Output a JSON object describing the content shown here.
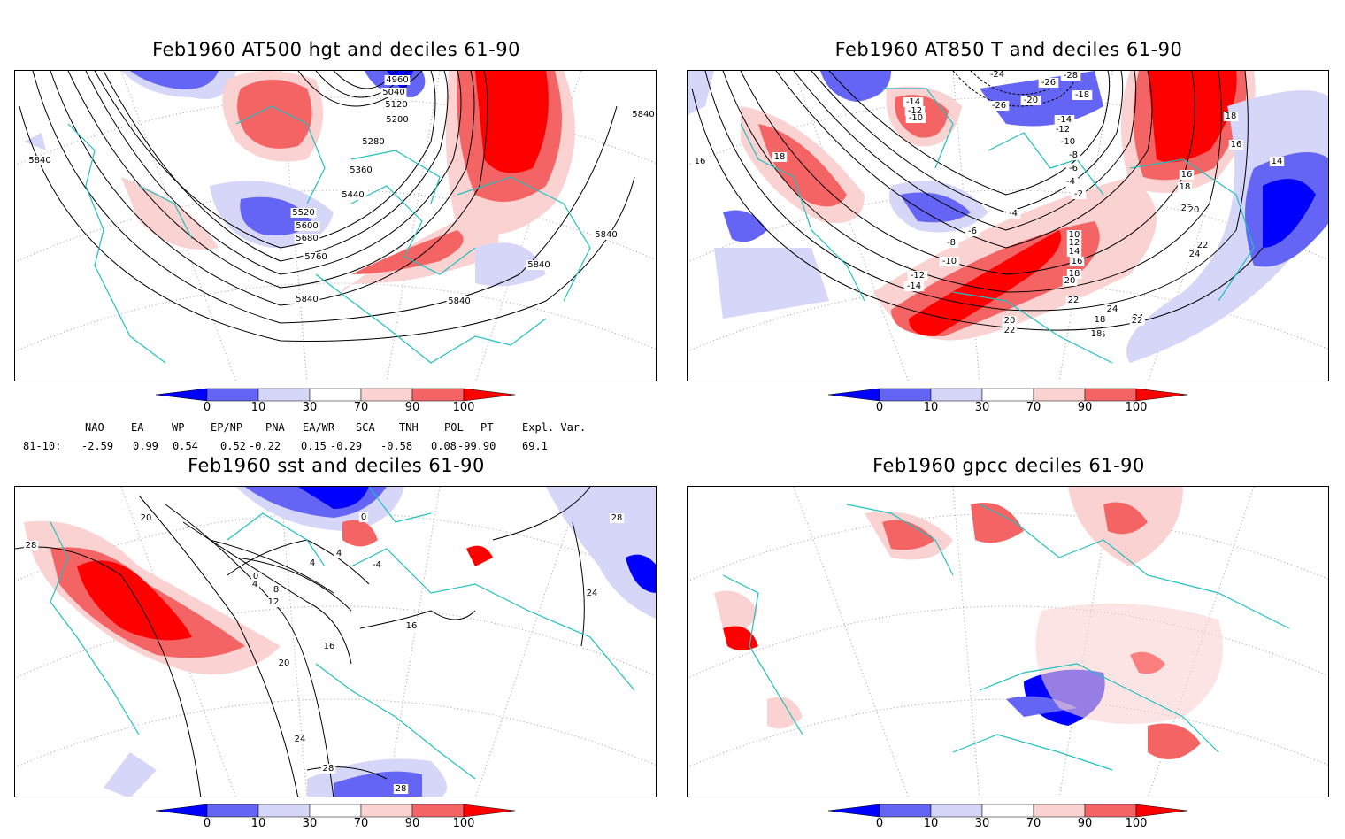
{
  "colors": {
    "deep_blue": "#0000ff",
    "mid_blue": "#6464f5",
    "light_blue": "#d6d6f8",
    "light_red": "#fbd2d2",
    "mid_red": "#f56464",
    "deep_red": "#ff0000",
    "coast": "#20c0c0",
    "grid": "#9a9a9a",
    "contour": "#000000"
  },
  "panels": [
    {
      "title": "Feb1960 AT500 hgt and deciles 61-90",
      "contour_labels": [
        "4960",
        "5040",
        "5120",
        "5200",
        "5280",
        "5360",
        "5440",
        "5520",
        "5600",
        "5680",
        "5760",
        "5840",
        "5840",
        "5840",
        "5840",
        "5840",
        "5840"
      ]
    },
    {
      "title": "Feb1960 AT850 T and deciles 61-90",
      "contour_labels": [
        "-24",
        "-26",
        "-28",
        "-26",
        "-20",
        "-18",
        "-14",
        "-12",
        "-10",
        "-14",
        "-12",
        "-10",
        "-8",
        "-6",
        "-4",
        "-2",
        "-4",
        "-6",
        "-8",
        "-10",
        "-12",
        "-14",
        "10",
        "12",
        "14",
        "16",
        "18",
        "20",
        "22",
        "24",
        "16",
        "18",
        "16",
        "18",
        "14",
        "16",
        "18",
        "20",
        "24",
        "18",
        "16",
        "18",
        "20",
        "22",
        "24",
        "22",
        "20",
        "22",
        "18"
      ]
    },
    {
      "title": "Feb1960 sst and deciles 61-90",
      "contour_labels": [
        "28",
        "20",
        "0",
        "4",
        "8",
        "12",
        "4",
        "0",
        "4",
        "-4",
        "16",
        "16",
        "20",
        "24",
        "28",
        "28",
        "28",
        "24"
      ]
    },
    {
      "title": "Feb1960 gpcc deciles 61-90",
      "contour_labels": []
    }
  ],
  "colorbar": {
    "tick_labels": [
      "0",
      "10",
      "30",
      "70",
      "90",
      "100"
    ]
  },
  "indices": {
    "headers": [
      "NAO",
      "EA",
      "WP",
      "EP/NP",
      "PNA",
      "EA/WR",
      "SCA",
      "TNH",
      "POL",
      "PT",
      "Expl. Var."
    ],
    "row_label": "81-10:",
    "values": [
      "-2.59",
      "0.99",
      "0.54",
      "0.52",
      "-0.22",
      "0.15",
      "-0.29",
      "-0.58",
      "0.08",
      "-99.90",
      "69.1"
    ]
  }
}
